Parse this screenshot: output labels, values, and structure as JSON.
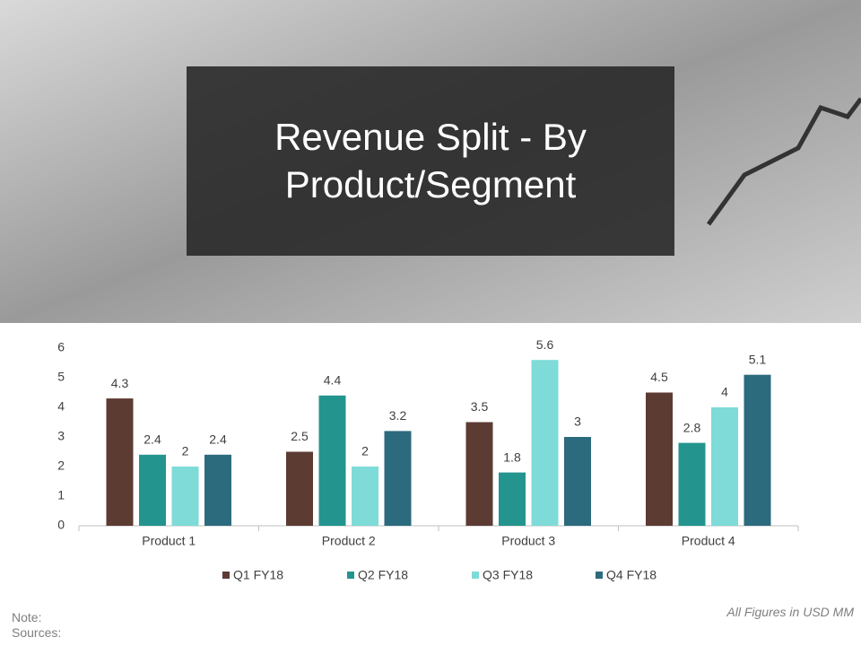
{
  "chart_data": {
    "type": "bar",
    "title": "Revenue Split - By Product/Segment",
    "categories": [
      "Product 1",
      "Product 2",
      "Product 3",
      "Product 4"
    ],
    "series": [
      {
        "name": "Q1 FY18",
        "color": "#5c3b33",
        "values": [
          4.3,
          2.5,
          3.5,
          4.5
        ]
      },
      {
        "name": "Q2 FY18",
        "color": "#23958e",
        "values": [
          2.4,
          4.4,
          1.8,
          2.8
        ]
      },
      {
        "name": "Q3 FY18",
        "color": "#7edbd8",
        "values": [
          2,
          2,
          5.6,
          4
        ]
      },
      {
        "name": "Q4 FY18",
        "color": "#2c6a7d",
        "values": [
          2.4,
          3.2,
          3,
          5.1
        ]
      }
    ],
    "ylim": [
      0,
      6
    ],
    "yticks": [
      0,
      1,
      2,
      3,
      4,
      5,
      6
    ],
    "grid": false,
    "legend": "bottom",
    "note": "Note:",
    "sources": "Sources:",
    "units_note": "All Figures in USD MM"
  }
}
